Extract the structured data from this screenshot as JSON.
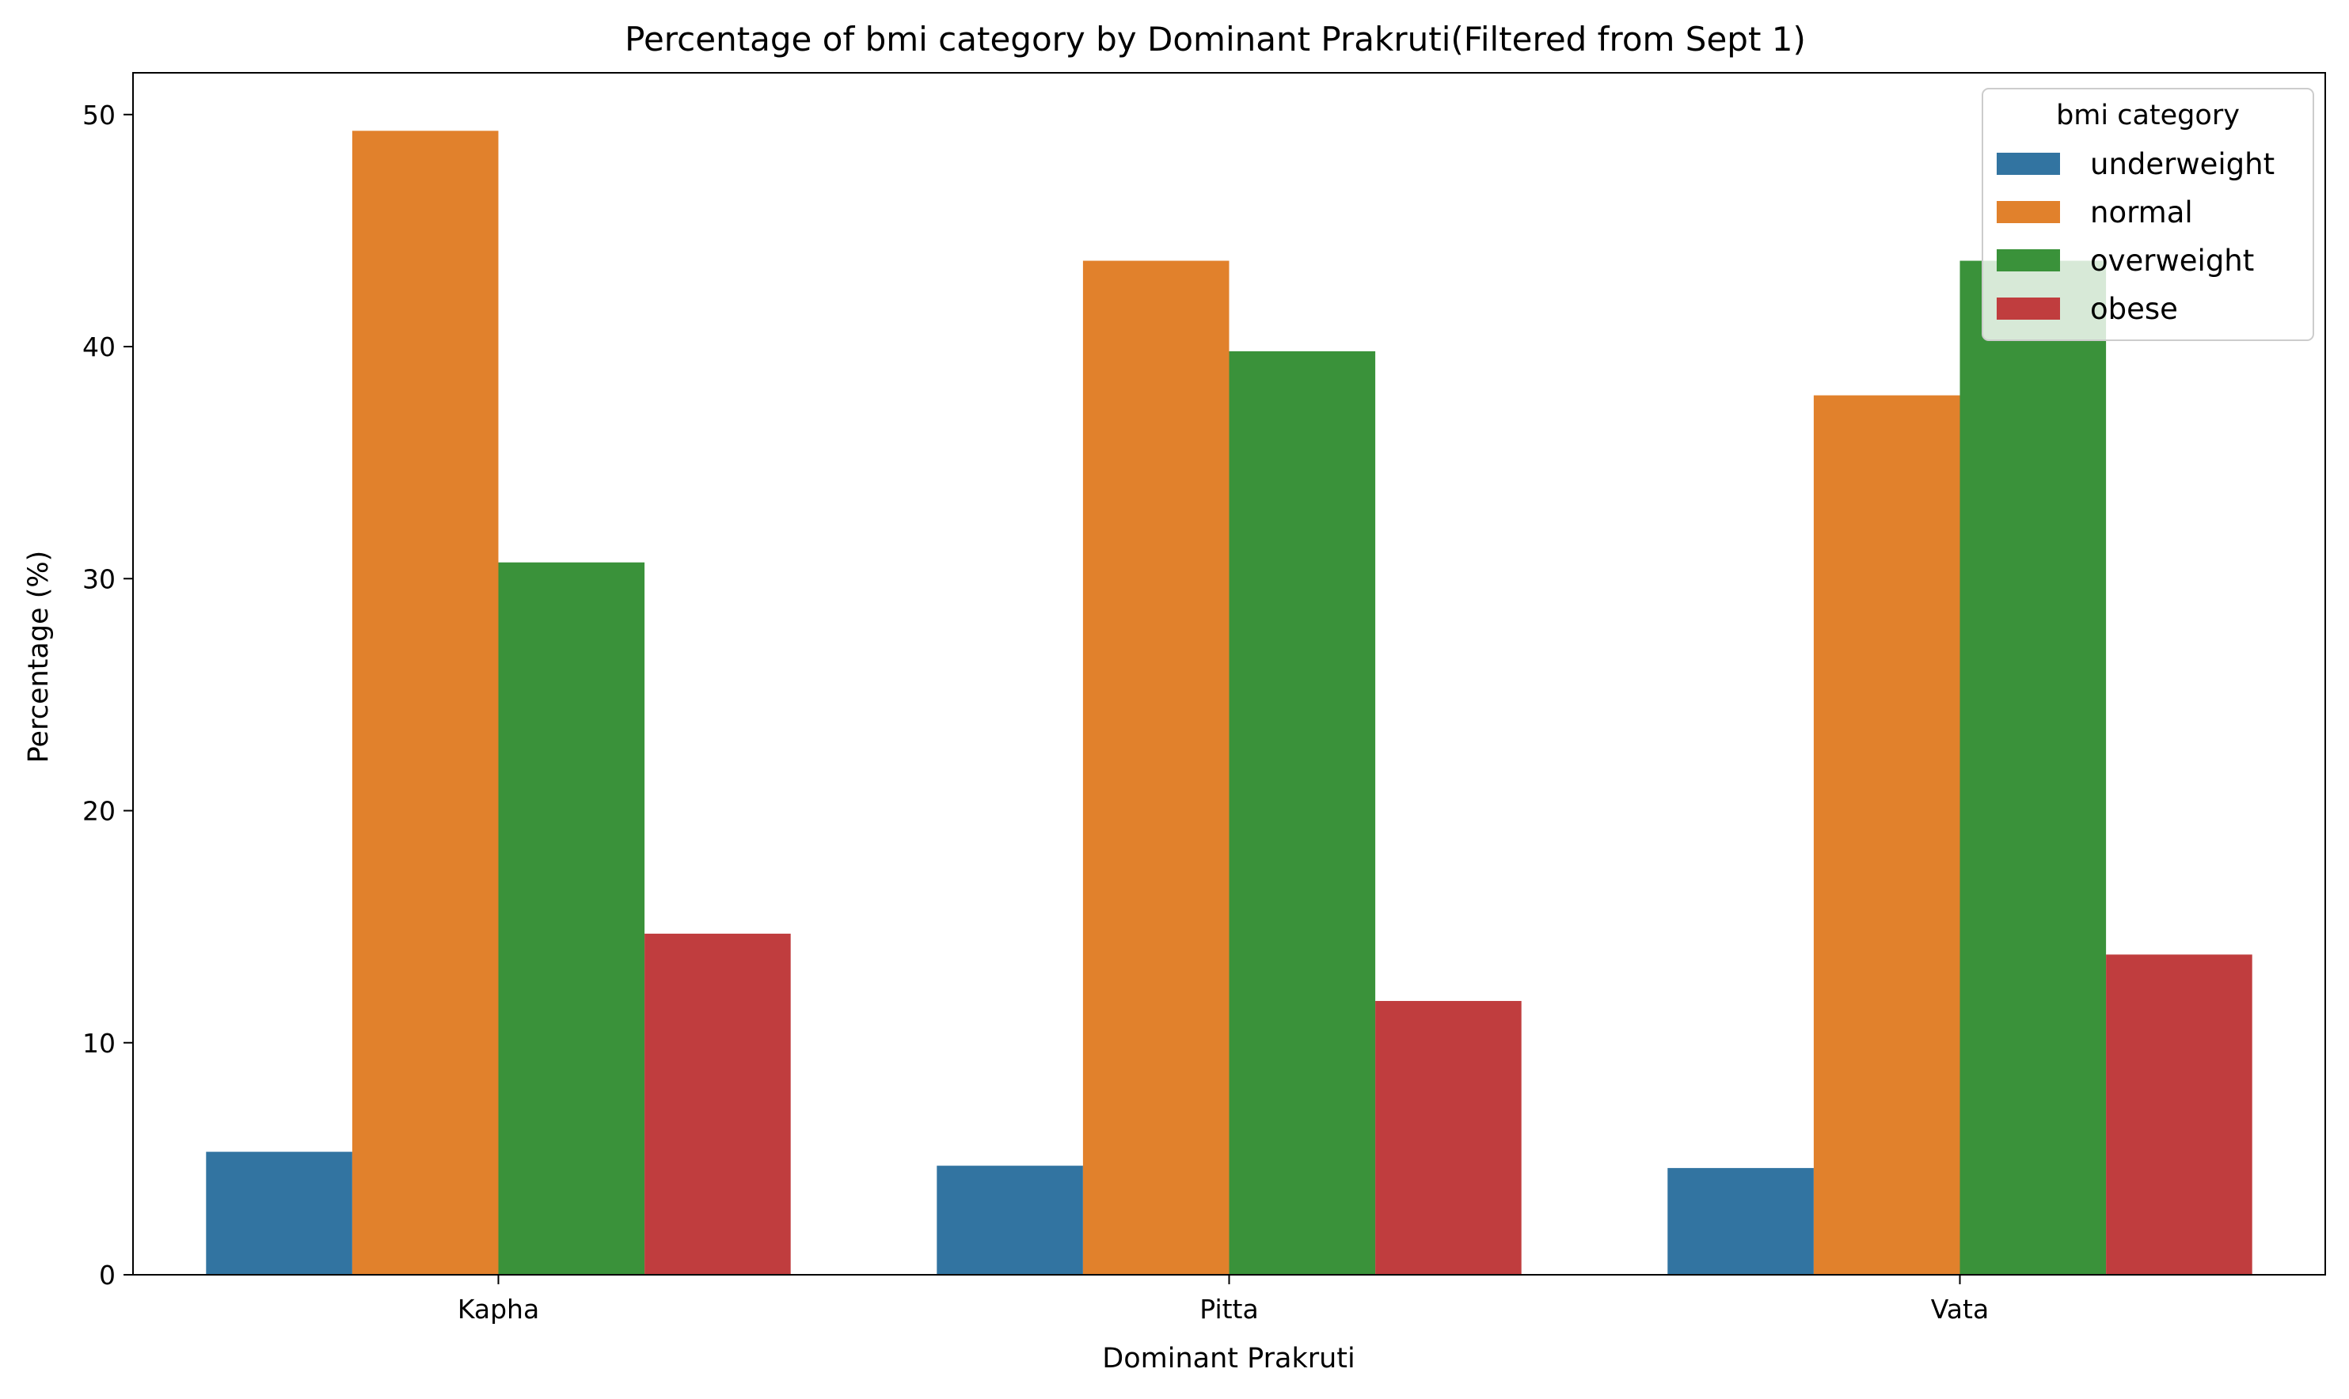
{
  "chart_data": {
    "type": "bar",
    "title": "Percentage of bmi category by Dominant Prakruti(Filtered from Sept 1)",
    "xlabel": "Dominant Prakruti",
    "ylabel": "Percentage (%)",
    "categories": [
      "Kapha",
      "Pitta",
      "Vata"
    ],
    "yticks": [
      "0",
      "10",
      "20",
      "30",
      "40",
      "50"
    ],
    "ylim": [
      0,
      51.8
    ],
    "grid": false,
    "legend": {
      "title": "bmi category",
      "placement": "top-right"
    },
    "series": [
      {
        "name": "underweight",
        "color": "#3274a1",
        "values": [
          5.3,
          4.7,
          4.6
        ]
      },
      {
        "name": "normal",
        "color": "#e1812c",
        "values": [
          49.3,
          43.7,
          37.9
        ]
      },
      {
        "name": "overweight",
        "color": "#3a923a",
        "values": [
          30.7,
          39.8,
          43.7
        ]
      },
      {
        "name": "obese",
        "color": "#c03d3e",
        "values": [
          14.7,
          11.8,
          13.8
        ]
      }
    ]
  }
}
